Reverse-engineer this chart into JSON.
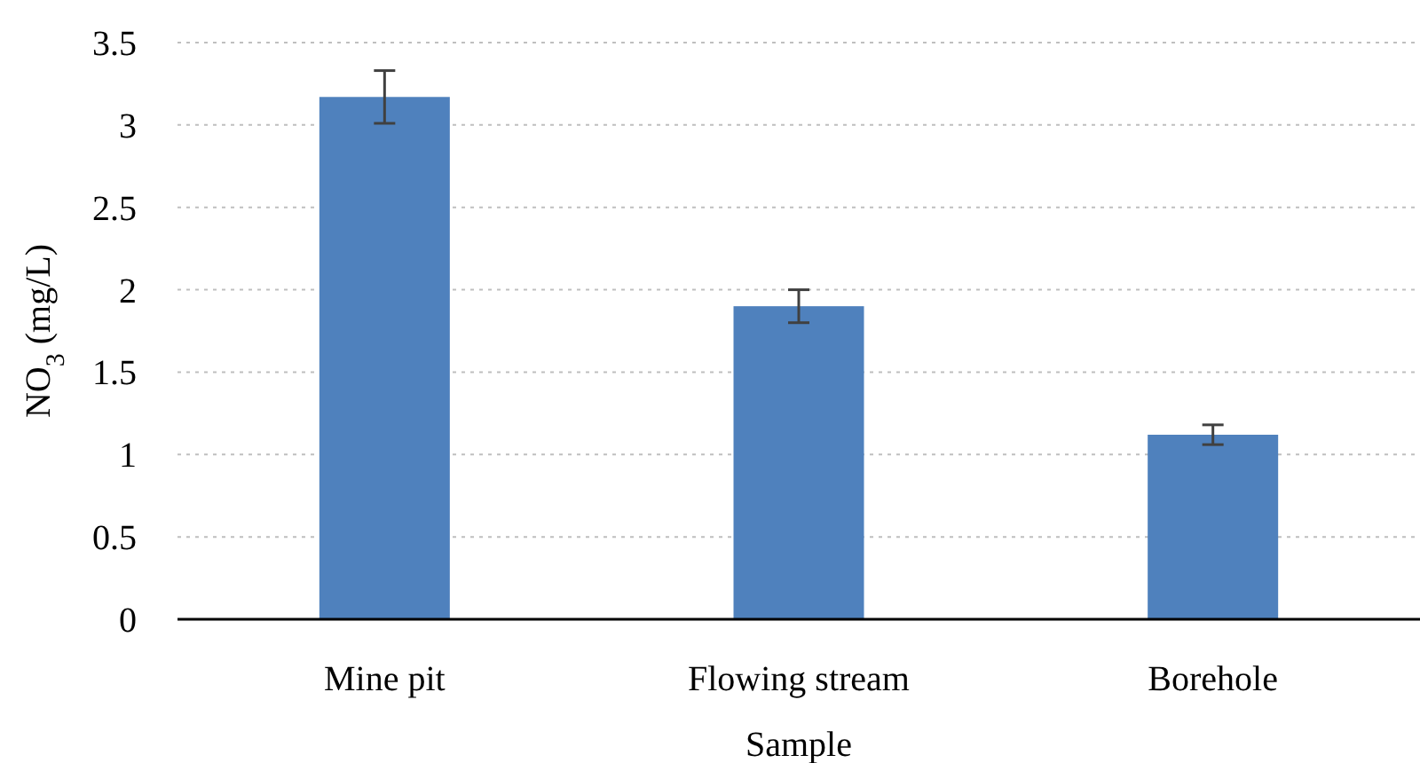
{
  "chart_data": {
    "type": "bar",
    "xlabel": "Sample",
    "ylabel": "NO$_{3}$ (mg/L)",
    "categories": [
      "Mine pit",
      "Flowing stream",
      "Borehole"
    ],
    "values": [
      3.17,
      1.9,
      1.12
    ],
    "errors": [
      0.16,
      0.1,
      0.06
    ],
    "color": "#4f81bd",
    "ylim": [
      0,
      3.5
    ],
    "yticks": [
      0,
      0.5,
      1,
      1.5,
      2,
      2.5,
      3,
      3.5
    ],
    "grid": "y"
  }
}
